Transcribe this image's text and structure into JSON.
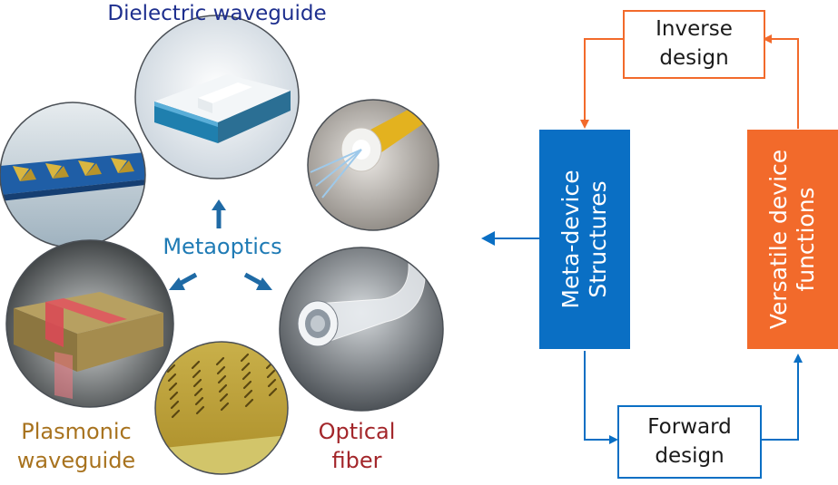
{
  "labels": {
    "dielectric": "Dielectric waveguide",
    "metaoptics": "Metaoptics",
    "plasmonic_line1": "Plasmonic",
    "plasmonic_line2": "waveguide",
    "optical_line1": "Optical",
    "optical_line2": "fiber"
  },
  "flow": {
    "inverse_line1": "Inverse",
    "inverse_line2": "design",
    "forward_line1": "Forward",
    "forward_line2": "design",
    "meta_line1": "Meta-device",
    "meta_line2": "Structures",
    "versatile_line1": "Versatile device",
    "versatile_line2": "functions"
  },
  "colors": {
    "blue": "#0a6fc4",
    "orange": "#f26a2b",
    "navy": "#1e2f8e",
    "teal": "#1f7bb5",
    "brown": "#a8731f",
    "red": "#a3262a"
  }
}
